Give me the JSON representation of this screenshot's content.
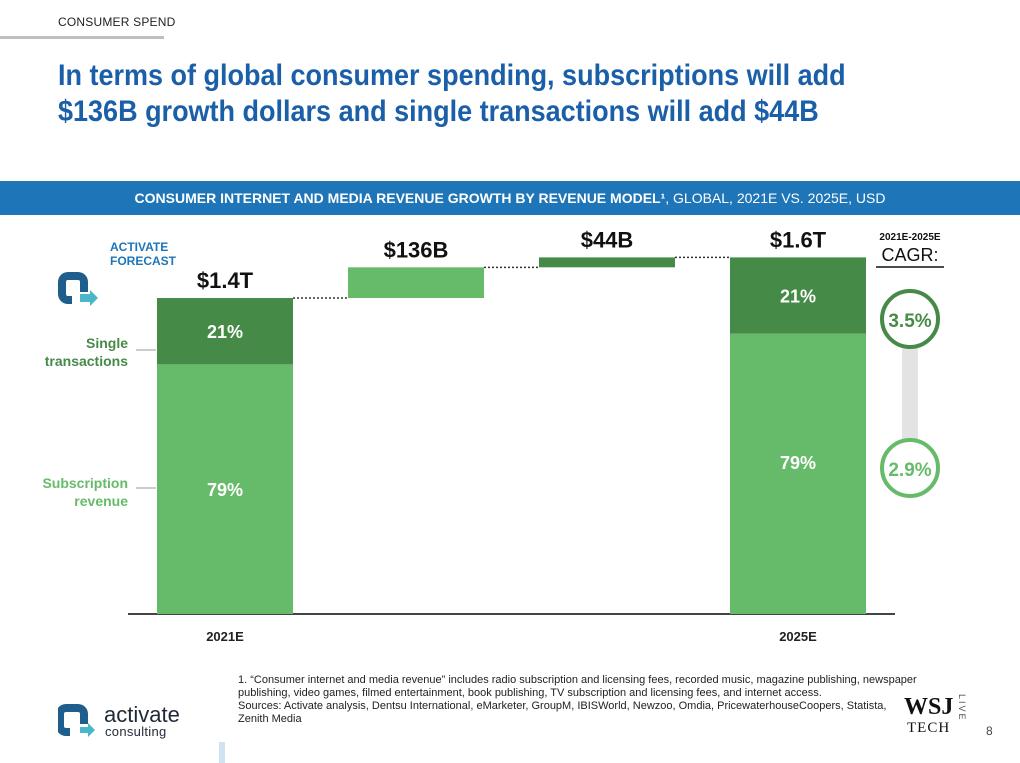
{
  "section": "CONSUMER SPEND",
  "headline": "In terms of global consumer spending, subscriptions will add $136B growth dollars and single transactions will add $44B",
  "banner": {
    "bold": "CONSUMER INTERNET AND MEDIA REVENUE GROWTH BY REVENUE MODEL¹",
    "rest": ", GLOBAL, 2021E VS. 2025E, USD"
  },
  "badge": {
    "line1": "ACTIVATE",
    "line2": "FORECAST"
  },
  "cagr": {
    "period": "2021E-2025E",
    "label": "CAGR:",
    "single": "3.5%",
    "subscription": "2.9%"
  },
  "colors": {
    "subscription": "#66bb6a",
    "single": "#468a47",
    "blue": "#1e75b8",
    "cagr_ring_top": "#468a47",
    "cagr_ring_bottom": "#66bb6a"
  },
  "chart_data": {
    "type": "bar",
    "subtype": "waterfall",
    "unit": "USD billions",
    "categories": [
      "2021E",
      "",
      "",
      "2025E"
    ],
    "bar_labels": [
      "$1.4T",
      "$136B",
      "$44B",
      "$1.6T"
    ],
    "totals": [
      1400,
      1580
    ],
    "increments": [
      136,
      44
    ],
    "segment_labels": {
      "2021E": {
        "single": "21%",
        "subscription": "79%"
      },
      "2025E": {
        "single": "21%",
        "subscription": "79%"
      }
    },
    "series": [
      {
        "name": "Subscription revenue",
        "values": [
          1106,
          136,
          0,
          1242
        ]
      },
      {
        "name": "Single transactions",
        "values": [
          294,
          0,
          44,
          338
        ]
      }
    ],
    "legend": {
      "single": "Single transactions",
      "subscription": "Subscription revenue"
    },
    "ylim": [
      0,
      1700
    ],
    "grid": false
  },
  "footnote": {
    "note": "1. “Consumer internet and media revenue” includes radio subscription and licensing fees, recorded music, magazine publishing, newspaper publishing, video games, filmed entertainment, book publishing, TV subscription and licensing fees, and internet access.",
    "sources": "Sources: Activate analysis, Dentsu International, eMarketer, GroupM, IBISWorld, Newzoo, Omdia, PricewaterhouseCoopers, Statista, Zenith Media"
  },
  "logo": {
    "name": "activate",
    "sub": "consulting"
  },
  "wsj": {
    "top": "WSJ",
    "bottom": "TECH",
    "side": "LIVE"
  },
  "page": "8"
}
